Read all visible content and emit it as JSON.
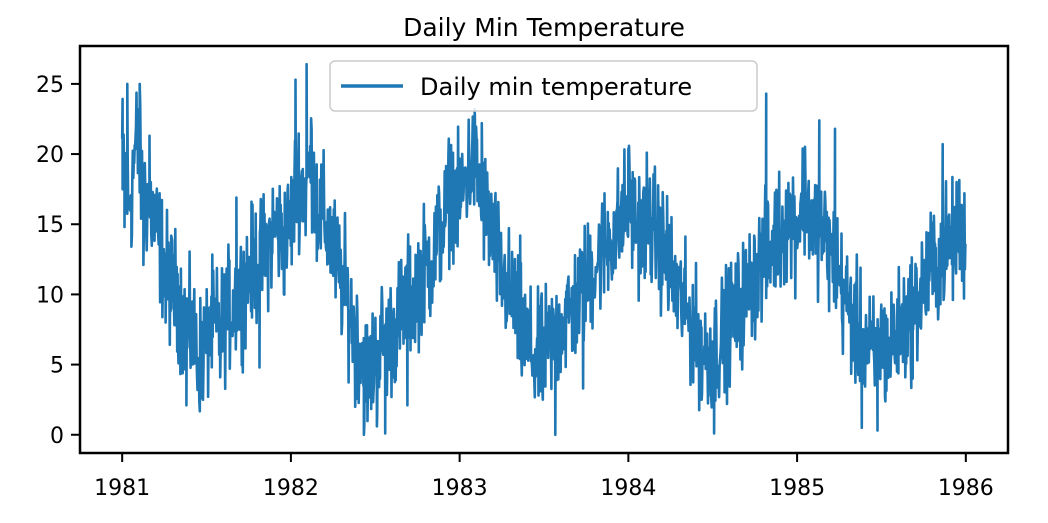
{
  "chart_data": {
    "type": "line",
    "title": "Daily Min Temperature",
    "xlabel": "",
    "ylabel": "",
    "x_start": "1981-01-01",
    "x_end": "1985-12-31",
    "xlim": [
      1980.75,
      1986.25
    ],
    "ylim": [
      -1.3,
      27.7
    ],
    "x_ticks": [
      1981,
      1982,
      1983,
      1984,
      1985,
      1986
    ],
    "x_tick_labels": [
      "1981",
      "1982",
      "1983",
      "1984",
      "1985",
      "1986"
    ],
    "y_ticks": [
      0,
      5,
      10,
      15,
      20,
      25
    ],
    "y_tick_labels": [
      "0",
      "5",
      "10",
      "15",
      "20",
      "25"
    ],
    "grid": false,
    "legend_position": "top-center",
    "series": [
      {
        "name": "Daily min temperature",
        "color": "#1f77b4",
        "x": [
          "1981-01-01",
          "1981-01-15",
          "1981-02-01",
          "1981-02-15",
          "1981-03-01",
          "1981-03-15",
          "1981-04-01",
          "1981-04-15",
          "1981-05-01",
          "1981-05-15",
          "1981-06-01",
          "1981-06-15",
          "1981-07-01",
          "1981-07-15",
          "1981-08-01",
          "1981-08-15",
          "1981-09-01",
          "1981-09-15",
          "1981-10-01",
          "1981-10-15",
          "1981-11-01",
          "1981-11-15",
          "1981-12-01",
          "1981-12-15",
          "1982-01-01",
          "1982-01-15",
          "1982-02-01",
          "1982-02-15",
          "1982-03-01",
          "1982-03-15",
          "1982-04-01",
          "1982-04-15",
          "1982-05-01",
          "1982-05-15",
          "1982-06-01",
          "1982-06-15",
          "1982-07-01",
          "1982-07-15",
          "1982-08-01",
          "1982-08-15",
          "1982-09-01",
          "1982-09-15",
          "1982-10-01",
          "1982-10-15",
          "1982-11-01",
          "1982-11-15",
          "1982-12-01",
          "1982-12-15",
          "1983-01-01",
          "1983-01-15",
          "1983-02-01",
          "1983-02-15",
          "1983-03-01",
          "1983-03-15",
          "1983-04-01",
          "1983-04-15",
          "1983-05-01",
          "1983-05-15",
          "1983-06-01",
          "1983-06-15",
          "1983-07-01",
          "1983-07-15",
          "1983-08-01",
          "1983-08-15",
          "1983-09-01",
          "1983-09-15",
          "1983-10-01",
          "1983-10-15",
          "1983-11-01",
          "1983-11-15",
          "1983-12-01",
          "1983-12-15",
          "1984-01-01",
          "1984-01-15",
          "1984-02-01",
          "1984-02-15",
          "1984-03-01",
          "1984-03-15",
          "1984-04-01",
          "1984-04-15",
          "1984-05-01",
          "1984-05-15",
          "1984-06-01",
          "1984-06-15",
          "1984-07-01",
          "1984-07-15",
          "1984-08-01",
          "1984-08-15",
          "1984-09-01",
          "1984-09-15",
          "1984-10-01",
          "1984-10-15",
          "1984-11-01",
          "1984-11-15",
          "1984-12-01",
          "1984-12-15",
          "1985-01-01",
          "1985-01-15",
          "1985-02-01",
          "1985-02-15",
          "1985-03-01",
          "1985-03-15",
          "1985-04-01",
          "1985-04-15",
          "1985-05-01",
          "1985-05-15",
          "1985-06-01",
          "1985-06-15",
          "1985-07-01",
          "1985-07-15",
          "1985-08-01",
          "1985-08-15",
          "1985-09-01",
          "1985-09-15",
          "1985-10-01",
          "1985-10-15",
          "1985-11-01",
          "1985-11-15",
          "1985-12-01",
          "1985-12-15",
          "1985-12-31"
        ],
        "y": [
          20.7,
          16.0,
          21.1,
          17.3,
          16.5,
          14.7,
          12.3,
          10.6,
          10.1,
          7.9,
          7.2,
          5.6,
          6.3,
          7.8,
          7.4,
          8.6,
          9.5,
          10.1,
          11.4,
          12.2,
          12.6,
          13.8,
          15.0,
          13.6,
          15.1,
          18.6,
          17.2,
          19.7,
          16.0,
          15.2,
          13.4,
          11.6,
          9.9,
          7.8,
          6.1,
          4.3,
          5.2,
          6.7,
          6.8,
          7.7,
          8.9,
          9.8,
          10.6,
          11.9,
          12.4,
          14.1,
          15.5,
          17.8,
          16.2,
          18.6,
          19.6,
          17.3,
          15.6,
          13.9,
          11.3,
          10.4,
          9.1,
          7.4,
          6.3,
          5.1,
          5.8,
          6.6,
          7.1,
          8.3,
          8.8,
          9.6,
          10.8,
          11.7,
          12.9,
          13.6,
          14.5,
          14.9,
          16.8,
          15.2,
          14.5,
          15.0,
          14.4,
          13.2,
          11.4,
          10.3,
          9.0,
          7.9,
          6.8,
          5.6,
          6.0,
          6.5,
          7.5,
          8.4,
          9.1,
          10.2,
          11.3,
          12.4,
          12.7,
          14.2,
          14.6,
          15.5,
          14.9,
          17.2,
          15.3,
          14.8,
          14.2,
          12.9,
          11.4,
          9.6,
          8.2,
          7.3,
          6.2,
          5.4,
          6.7,
          5.9,
          7.0,
          7.6,
          8.4,
          9.2,
          10.6,
          11.8,
          12.3,
          13.2,
          13.6,
          14.4,
          14.0
        ],
        "spikes": [
          [
            "1981-01-02",
            17.5
          ],
          [
            "1981-01-06",
            14.8
          ],
          [
            "1981-01-12",
            25.0
          ],
          [
            "1981-01-21",
            13.4
          ],
          [
            "1981-02-08",
            25.0
          ],
          [
            "1981-02-16",
            12.1
          ],
          [
            "1981-03-01",
            21.3
          ],
          [
            "1981-03-11",
            13.9
          ],
          [
            "1981-04-05",
            8.0
          ],
          [
            "1981-05-20",
            2.1
          ],
          [
            "1981-06-20",
            2.6
          ],
          [
            "1981-08-01",
            4.1
          ],
          [
            "1981-09-05",
            16.9
          ],
          [
            "1981-10-25",
            4.8
          ],
          [
            "1982-01-11",
            25.3
          ],
          [
            "1982-02-04",
            26.4
          ],
          [
            "1982-02-26",
            12.4
          ],
          [
            "1982-04-28",
            15.8
          ],
          [
            "1982-05-20",
            2.0
          ],
          [
            "1982-06-08",
            0.0
          ],
          [
            "1982-07-06",
            0.6
          ],
          [
            "1982-07-24",
            0.1
          ],
          [
            "1982-09-10",
            2.1
          ],
          [
            "1982-10-02",
            12.3
          ],
          [
            "1982-12-25",
            17.2
          ],
          [
            "1983-02-03",
            22.5
          ],
          [
            "1983-02-18",
            22.2
          ],
          [
            "1983-05-12",
            14.2
          ],
          [
            "1983-06-30",
            2.5
          ],
          [
            "1983-07-27",
            0.0
          ],
          [
            "1983-09-25",
            3.3
          ],
          [
            "1984-01-01",
            20.4
          ],
          [
            "1984-02-10",
            20.1
          ],
          [
            "1984-03-25",
            17.0
          ],
          [
            "1984-06-08",
            2.5
          ],
          [
            "1984-07-05",
            0.1
          ],
          [
            "1984-08-20",
            6.7
          ],
          [
            "1984-10-26",
            24.3
          ],
          [
            "1985-02-18",
            22.4
          ],
          [
            "1985-03-24",
            21.8
          ],
          [
            "1985-05-21",
            0.5
          ],
          [
            "1985-06-24",
            0.3
          ],
          [
            "1985-09-08",
            4.0
          ],
          [
            "1985-11-12",
            20.7
          ],
          [
            "1985-12-05",
            15.8
          ],
          [
            "1985-12-24",
            11.0
          ]
        ]
      }
    ]
  }
}
